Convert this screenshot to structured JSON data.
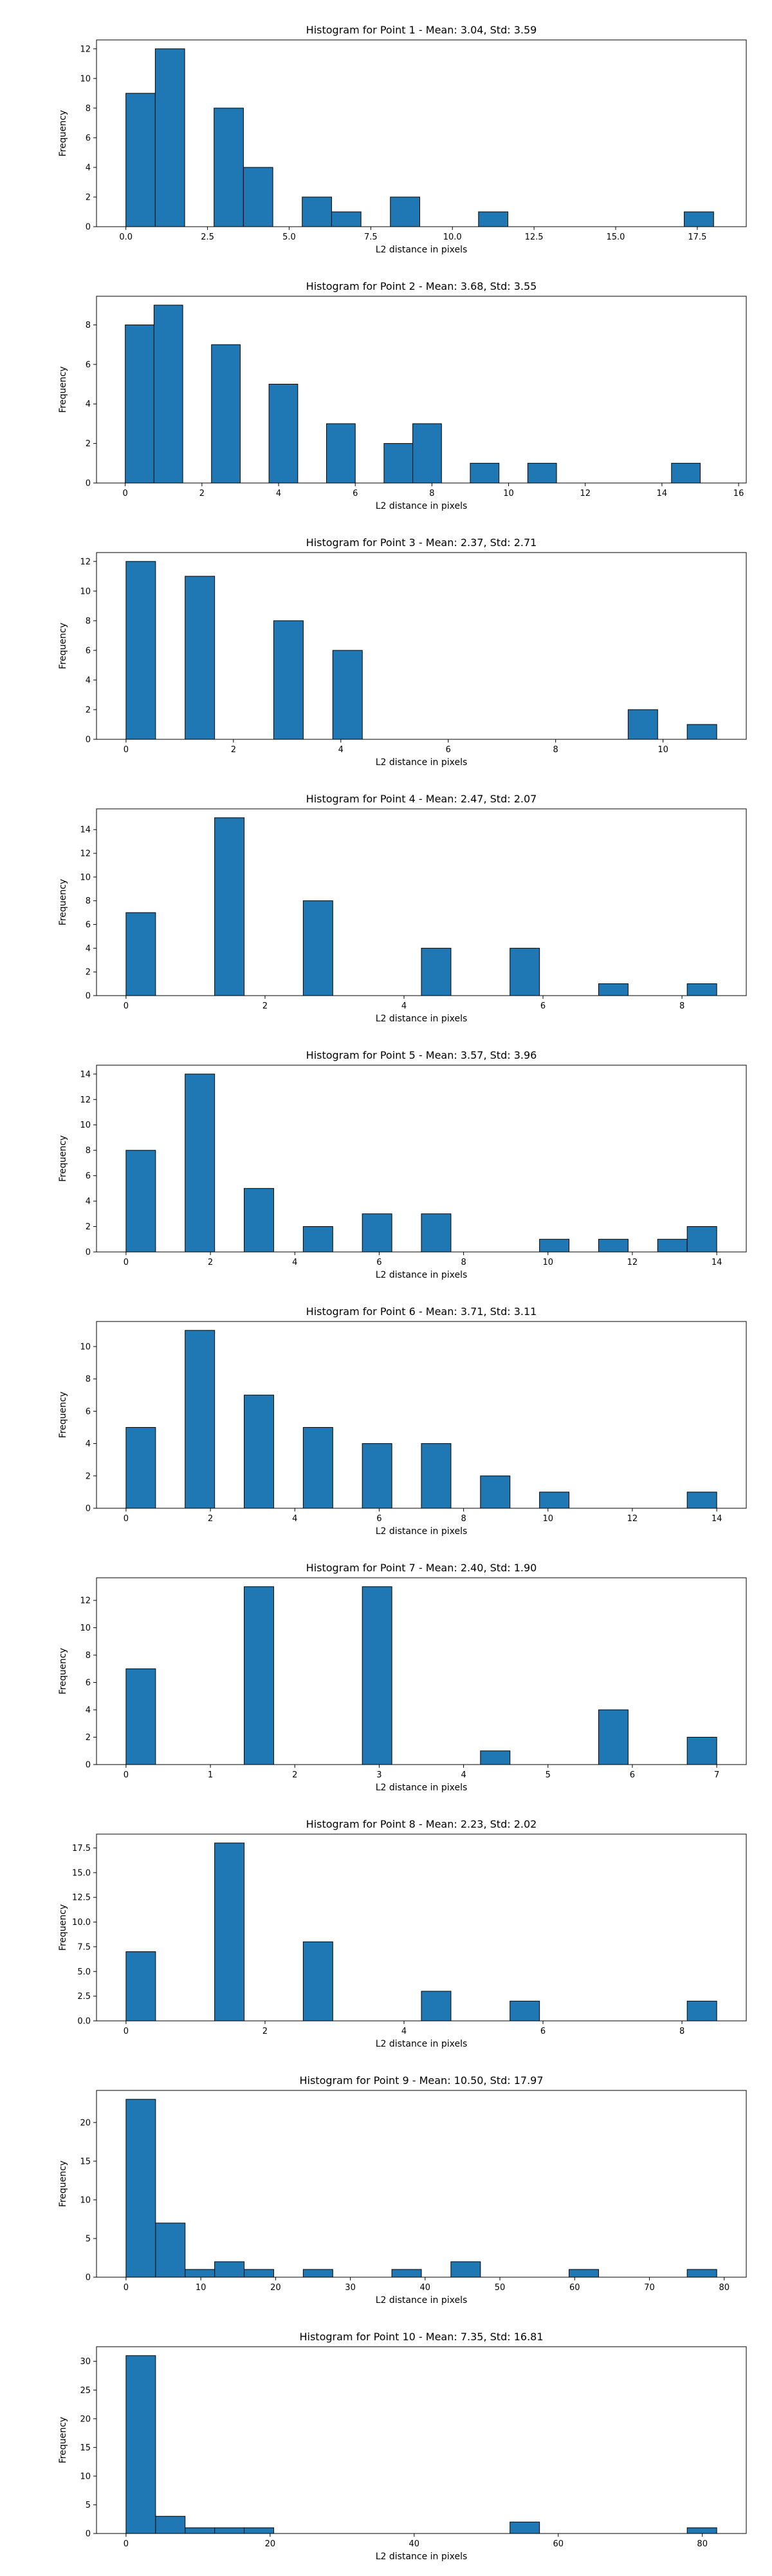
{
  "chart_data": [
    {
      "type": "bar",
      "title": "Histogram for Point 1 - Mean: 3.04, Std: 3.59",
      "xlabel": "L2 distance in pixels",
      "ylabel": "Frequency",
      "xlim": [
        -0.9,
        19.0
      ],
      "ylim": [
        0,
        12.6
      ],
      "xticks": [
        0.0,
        2.5,
        5.0,
        7.5,
        10.0,
        12.5,
        15.0,
        17.5
      ],
      "xtick_labels": [
        "0.0",
        "2.5",
        "5.0",
        "7.5",
        "10.0",
        "12.5",
        "15.0",
        "17.5"
      ],
      "yticks": [
        0,
        2,
        4,
        6,
        8,
        10,
        12
      ],
      "bins": [
        {
          "start": 0.0,
          "end": 0.9,
          "count": 9
        },
        {
          "start": 0.9,
          "end": 1.8,
          "count": 12
        },
        {
          "start": 2.7,
          "end": 3.6,
          "count": 8
        },
        {
          "start": 3.6,
          "end": 4.5,
          "count": 4
        },
        {
          "start": 5.4,
          "end": 6.3,
          "count": 2
        },
        {
          "start": 6.3,
          "end": 7.2,
          "count": 1
        },
        {
          "start": 8.1,
          "end": 9.0,
          "count": 2
        },
        {
          "start": 10.8,
          "end": 11.7,
          "count": 1
        },
        {
          "start": 17.1,
          "end": 18.0,
          "count": 1
        }
      ]
    },
    {
      "type": "bar",
      "title": "Histogram for Point 2 - Mean: 3.68, Std: 3.55",
      "xlabel": "L2 distance in pixels",
      "ylabel": "Frequency",
      "xlim": [
        -0.75,
        16.2
      ],
      "ylim": [
        0,
        9.45
      ],
      "xticks": [
        0,
        2,
        4,
        6,
        8,
        10,
        12,
        14,
        16
      ],
      "xtick_labels": [
        "0",
        "2",
        "4",
        "6",
        "8",
        "10",
        "12",
        "14",
        "16"
      ],
      "yticks": [
        0,
        2,
        4,
        6,
        8
      ],
      "bins": [
        {
          "start": 0.0,
          "end": 0.75,
          "count": 8
        },
        {
          "start": 0.75,
          "end": 1.5,
          "count": 9
        },
        {
          "start": 2.25,
          "end": 3.0,
          "count": 7
        },
        {
          "start": 3.75,
          "end": 4.5,
          "count": 5
        },
        {
          "start": 5.25,
          "end": 6.0,
          "count": 3
        },
        {
          "start": 6.75,
          "end": 7.5,
          "count": 2
        },
        {
          "start": 7.5,
          "end": 8.25,
          "count": 3
        },
        {
          "start": 9.0,
          "end": 9.75,
          "count": 1
        },
        {
          "start": 10.5,
          "end": 11.25,
          "count": 1
        },
        {
          "start": 14.25,
          "end": 15.0,
          "count": 1
        }
      ]
    },
    {
      "type": "bar",
      "title": "Histogram for Point 3 - Mean: 2.37, Std: 2.71",
      "xlabel": "L2 distance in pixels",
      "ylabel": "Frequency",
      "xlim": [
        -0.55,
        11.55
      ],
      "ylim": [
        0,
        12.6
      ],
      "xticks": [
        0,
        2,
        4,
        6,
        8,
        10
      ],
      "xtick_labels": [
        "0",
        "2",
        "4",
        "6",
        "8",
        "10"
      ],
      "yticks": [
        0,
        2,
        4,
        6,
        8,
        10,
        12
      ],
      "bins": [
        {
          "start": 0.0,
          "end": 0.55,
          "count": 12
        },
        {
          "start": 1.1,
          "end": 1.65,
          "count": 11
        },
        {
          "start": 2.75,
          "end": 3.3,
          "count": 8
        },
        {
          "start": 3.85,
          "end": 4.4,
          "count": 6
        },
        {
          "start": 9.35,
          "end": 9.9,
          "count": 2
        },
        {
          "start": 10.45,
          "end": 11.0,
          "count": 1
        }
      ]
    },
    {
      "type": "bar",
      "title": "Histogram for Point 4 - Mean: 2.47, Std: 2.07",
      "xlabel": "L2 distance in pixels",
      "ylabel": "Frequency",
      "xlim": [
        -0.425,
        8.925
      ],
      "ylim": [
        0,
        15.75
      ],
      "xticks": [
        0,
        2,
        4,
        6,
        8
      ],
      "xtick_labels": [
        "0",
        "2",
        "4",
        "6",
        "8"
      ],
      "yticks": [
        0,
        2,
        4,
        6,
        8,
        10,
        12,
        14
      ],
      "bins": [
        {
          "start": 0.0,
          "end": 0.425,
          "count": 7
        },
        {
          "start": 1.275,
          "end": 1.7,
          "count": 15
        },
        {
          "start": 2.55,
          "end": 2.975,
          "count": 8
        },
        {
          "start": 4.25,
          "end": 4.675,
          "count": 4
        },
        {
          "start": 5.525,
          "end": 5.95,
          "count": 4
        },
        {
          "start": 6.8,
          "end": 7.225,
          "count": 1
        },
        {
          "start": 8.075,
          "end": 8.5,
          "count": 1
        }
      ]
    },
    {
      "type": "bar",
      "title": "Histogram for Point 5 - Mean: 3.57, Std: 3.96",
      "xlabel": "L2 distance in pixels",
      "ylabel": "Frequency",
      "xlim": [
        -0.7,
        14.7
      ],
      "ylim": [
        0,
        14.7
      ],
      "xticks": [
        0,
        2,
        4,
        6,
        8,
        10,
        12,
        14
      ],
      "xtick_labels": [
        "0",
        "2",
        "4",
        "6",
        "8",
        "10",
        "12",
        "14"
      ],
      "yticks": [
        0,
        2,
        4,
        6,
        8,
        10,
        12,
        14
      ],
      "bins": [
        {
          "start": 0.0,
          "end": 0.7,
          "count": 8
        },
        {
          "start": 1.4,
          "end": 2.1,
          "count": 14
        },
        {
          "start": 2.8,
          "end": 3.5,
          "count": 5
        },
        {
          "start": 4.2,
          "end": 4.9,
          "count": 2
        },
        {
          "start": 5.6,
          "end": 6.3,
          "count": 3
        },
        {
          "start": 7.0,
          "end": 7.7,
          "count": 3
        },
        {
          "start": 9.8,
          "end": 10.5,
          "count": 1
        },
        {
          "start": 11.2,
          "end": 11.9,
          "count": 1
        },
        {
          "start": 12.6,
          "end": 13.3,
          "count": 1
        },
        {
          "start": 13.3,
          "end": 14.0,
          "count": 2
        }
      ]
    },
    {
      "type": "bar",
      "title": "Histogram for Point 6 - Mean: 3.71, Std: 3.11",
      "xlabel": "L2 distance in pixels",
      "ylabel": "Frequency",
      "xlim": [
        -0.7,
        14.7
      ],
      "ylim": [
        0,
        11.55
      ],
      "xticks": [
        0,
        2,
        4,
        6,
        8,
        10,
        12,
        14
      ],
      "xtick_labels": [
        "0",
        "2",
        "4",
        "6",
        "8",
        "10",
        "12",
        "14"
      ],
      "yticks": [
        0,
        2,
        4,
        6,
        8,
        10
      ],
      "bins": [
        {
          "start": 0.0,
          "end": 0.7,
          "count": 5
        },
        {
          "start": 1.4,
          "end": 2.1,
          "count": 11
        },
        {
          "start": 2.8,
          "end": 3.5,
          "count": 7
        },
        {
          "start": 4.2,
          "end": 4.9,
          "count": 5
        },
        {
          "start": 5.6,
          "end": 6.3,
          "count": 4
        },
        {
          "start": 7.0,
          "end": 7.7,
          "count": 4
        },
        {
          "start": 8.4,
          "end": 9.1,
          "count": 2
        },
        {
          "start": 9.8,
          "end": 10.5,
          "count": 1
        },
        {
          "start": 13.3,
          "end": 14.0,
          "count": 1
        }
      ]
    },
    {
      "type": "bar",
      "title": "Histogram for Point 7 - Mean: 2.40, Std: 1.90",
      "xlabel": "L2 distance in pixels",
      "ylabel": "Frequency",
      "xlim": [
        -0.35,
        7.35
      ],
      "ylim": [
        0,
        13.65
      ],
      "xticks": [
        0,
        1,
        2,
        3,
        4,
        5,
        6,
        7
      ],
      "xtick_labels": [
        "0",
        "1",
        "2",
        "3",
        "4",
        "5",
        "6",
        "7"
      ],
      "yticks": [
        0,
        2,
        4,
        6,
        8,
        10,
        12
      ],
      "bins": [
        {
          "start": 0.0,
          "end": 0.35,
          "count": 7
        },
        {
          "start": 1.4,
          "end": 1.75,
          "count": 13
        },
        {
          "start": 2.8,
          "end": 3.15,
          "count": 13
        },
        {
          "start": 4.2,
          "end": 4.55,
          "count": 1
        },
        {
          "start": 5.6,
          "end": 5.95,
          "count": 4
        },
        {
          "start": 6.65,
          "end": 7.0,
          "count": 2
        }
      ]
    },
    {
      "type": "bar",
      "title": "Histogram for Point 8 - Mean: 2.23, Std: 2.02",
      "xlabel": "L2 distance in pixels",
      "ylabel": "Frequency",
      "xlim": [
        -0.425,
        8.925
      ],
      "ylim": [
        0,
        18.9
      ],
      "xticks": [
        0,
        2,
        4,
        6,
        8
      ],
      "xtick_labels": [
        "0",
        "2",
        "4",
        "6",
        "8"
      ],
      "yticks": [
        0,
        2.5,
        5,
        7.5,
        10,
        12.5,
        15,
        17.5
      ],
      "ytick_labels": [
        "0.0",
        "2.5",
        "5.0",
        "7.5",
        "10.0",
        "12.5",
        "15.0",
        "17.5"
      ],
      "bins": [
        {
          "start": 0.0,
          "end": 0.425,
          "count": 7
        },
        {
          "start": 1.275,
          "end": 1.7,
          "count": 18
        },
        {
          "start": 2.55,
          "end": 2.975,
          "count": 8
        },
        {
          "start": 4.25,
          "end": 4.675,
          "count": 3
        },
        {
          "start": 5.525,
          "end": 5.95,
          "count": 2
        },
        {
          "start": 8.075,
          "end": 8.5,
          "count": 2
        }
      ]
    },
    {
      "type": "bar",
      "title": "Histogram for Point 9 - Mean: 10.50, Std: 17.97",
      "xlabel": "L2 distance in pixels",
      "ylabel": "Frequency",
      "xlim": [
        -3.95,
        82.95
      ],
      "ylim": [
        0,
        24.15
      ],
      "xticks": [
        0,
        10,
        20,
        30,
        40,
        50,
        60,
        70,
        80
      ],
      "xtick_labels": [
        "0",
        "10",
        "20",
        "30",
        "40",
        "50",
        "60",
        "70",
        "80"
      ],
      "yticks": [
        0,
        5,
        10,
        15,
        20
      ],
      "bins": [
        {
          "start": 0.0,
          "end": 3.95,
          "count": 23
        },
        {
          "start": 3.95,
          "end": 7.9,
          "count": 7
        },
        {
          "start": 7.9,
          "end": 11.85,
          "count": 1
        },
        {
          "start": 11.85,
          "end": 15.8,
          "count": 2
        },
        {
          "start": 15.8,
          "end": 19.75,
          "count": 1
        },
        {
          "start": 23.7,
          "end": 27.65,
          "count": 1
        },
        {
          "start": 35.55,
          "end": 39.5,
          "count": 1
        },
        {
          "start": 43.45,
          "end": 47.4,
          "count": 2
        },
        {
          "start": 59.25,
          "end": 63.2,
          "count": 1
        },
        {
          "start": 75.05,
          "end": 79.0,
          "count": 1
        }
      ]
    },
    {
      "type": "bar",
      "title": "Histogram for Point 10 - Mean: 7.35, Std: 16.81",
      "xlabel": "L2 distance in pixels",
      "ylabel": "Frequency",
      "xlim": [
        -4.1,
        86.1
      ],
      "ylim": [
        0,
        32.55
      ],
      "xticks": [
        0,
        20,
        40,
        60,
        80
      ],
      "xtick_labels": [
        "0",
        "20",
        "40",
        "60",
        "80"
      ],
      "yticks": [
        0,
        5,
        10,
        15,
        20,
        25,
        30
      ],
      "bins": [
        {
          "start": 0.0,
          "end": 4.1,
          "count": 31
        },
        {
          "start": 4.1,
          "end": 8.2,
          "count": 3
        },
        {
          "start": 8.2,
          "end": 12.3,
          "count": 1
        },
        {
          "start": 12.3,
          "end": 16.4,
          "count": 1
        },
        {
          "start": 16.4,
          "end": 20.5,
          "count": 1
        },
        {
          "start": 53.3,
          "end": 57.4,
          "count": 2
        },
        {
          "start": 77.9,
          "end": 82.0,
          "count": 1
        }
      ]
    }
  ]
}
